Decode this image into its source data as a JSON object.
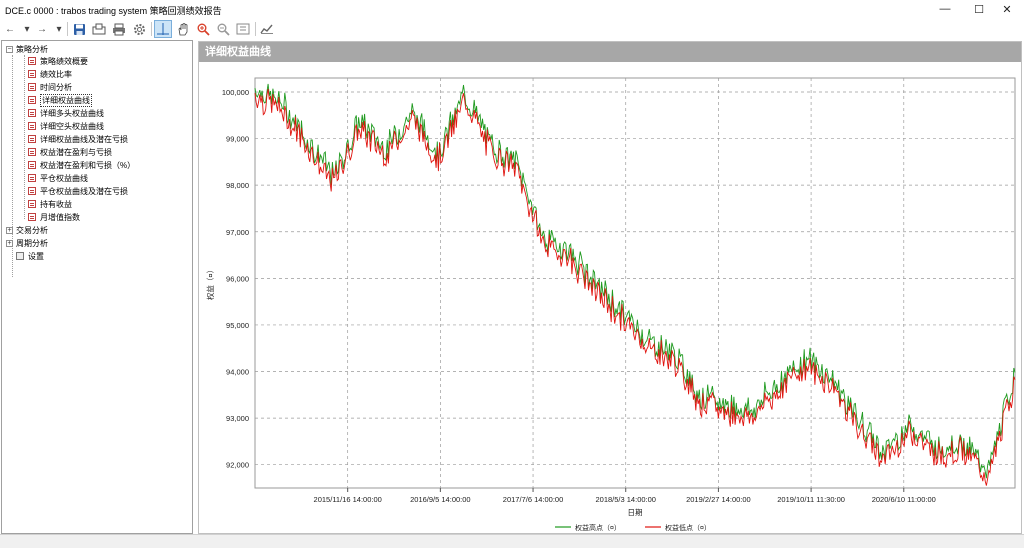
{
  "window": {
    "title": "DCE.c 0000 : trabos trading system 策略回测绩效报告",
    "controls": {
      "minimize": "—",
      "maximize": "☐",
      "close": "✕"
    }
  },
  "toolbar": {
    "back": "←",
    "back_menu": "▾",
    "forward": "→",
    "forward_menu": "▾",
    "save_icon": "save-icon",
    "export_icon": "export-icon",
    "print_icon": "print-icon",
    "settings_icon": "gear-icon",
    "crosshair_icon": "crosshair-icon",
    "pan_icon": "hand-icon",
    "zoomin_icon": "zoom-in-icon",
    "zoomout_icon": "zoom-out-icon",
    "fit_icon": "fit-icon",
    "chart_icon": "chart-style-icon"
  },
  "tree": {
    "root1": "策略分析",
    "items": [
      "策略绩效概要",
      "绩效比率",
      "时间分析",
      "详细权益曲线",
      "详细多头权益曲线",
      "详细空头权益曲线",
      "详细权益曲线及潜在亏损",
      "权益潜在盈利与亏损",
      "权益潜在盈利和亏损（%）",
      "平仓权益曲线",
      "平仓权益曲线及潜在亏损",
      "持有收益",
      "月增值指数"
    ],
    "root2": "交易分析",
    "root3": "周期分析",
    "settings": "设置"
  },
  "panel": {
    "header": "详细权益曲线"
  },
  "chart_data": {
    "type": "line",
    "title": "",
    "xlabel": "日期",
    "ylabel": "权益（¤）",
    "ylim": [
      91500,
      100300
    ],
    "yticks": [
      92000,
      93000,
      94000,
      95000,
      96000,
      97000,
      98000,
      99000,
      100000
    ],
    "ytick_labels": [
      "92,000",
      "93,000",
      "94,000",
      "95,000",
      "96,000",
      "97,000",
      "98,000",
      "99,000",
      "100,000"
    ],
    "xtick_labels": [
      "2015/11/16 14:00:00",
      "2016/9/5 14:00:00",
      "2017/7/6 14:00:00",
      "2018/5/3 14:00:00",
      "2019/2/27 14:00:00",
      "2019/10/11 11:30:00",
      "2020/6/10 11:00:00"
    ],
    "grid": true,
    "legend_position": "bottom",
    "colors": {
      "high": "#1f9a1f",
      "low": "#e0140f"
    },
    "series": [
      {
        "name": "权益高点（¤）"
      },
      {
        "name": "权益低点（¤）"
      }
    ],
    "x": [
      "2015/03",
      "2015/07",
      "2015/10",
      "2015/12",
      "2016/02",
      "2016/04",
      "2016/06",
      "2016/08",
      "2016/10",
      "2016/12",
      "2017/02",
      "2017/04",
      "2017/06",
      "2017/08",
      "2017/10",
      "2018/01",
      "2018/04",
      "2018/07",
      "2018/10",
      "2019/01",
      "2019/04",
      "2019/07",
      "2019/09",
      "2019/11",
      "2020/01",
      "2020/03",
      "2020/05",
      "2020/07",
      "2020/09",
      "2020/11"
    ],
    "equity": [
      100000,
      99700,
      98900,
      98100,
      99300,
      98700,
      99500,
      98600,
      99900,
      98800,
      98400,
      96800,
      96500,
      95800,
      95200,
      94600,
      94300,
      93400,
      93200,
      93100,
      93700,
      94200,
      93800,
      92900,
      92200,
      92800,
      92300,
      92400,
      91800,
      93900
    ]
  }
}
